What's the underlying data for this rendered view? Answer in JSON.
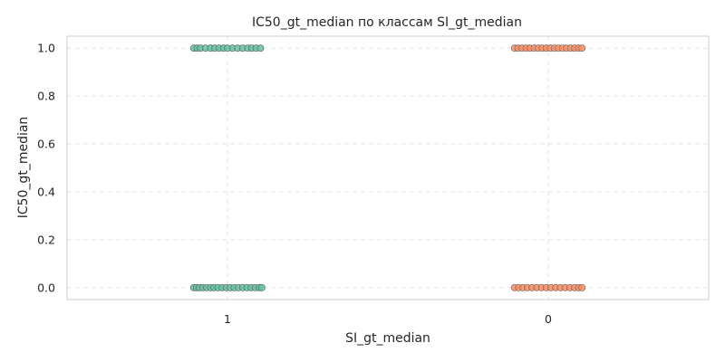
{
  "chart_data": {
    "type": "scatter",
    "title": "IC50_gt_median по классам SI_gt_median",
    "xlabel": "SI_gt_median",
    "ylabel": "IC50_gt_median",
    "categories": [
      "1",
      "0"
    ],
    "ylim": [
      -0.05,
      1.05
    ],
    "yticks": [
      "0.0",
      "0.2",
      "0.4",
      "0.6",
      "0.8",
      "1.0"
    ],
    "grid": true,
    "series": [
      {
        "category": "1",
        "color": "#66c2a5",
        "edge_color": "#5b6b66",
        "points": [
          {
            "jitter": -0.1,
            "y": 1
          },
          {
            "jitter": -0.09,
            "y": 1
          },
          {
            "jitter": -0.08,
            "y": 1
          },
          {
            "jitter": -0.065,
            "y": 1
          },
          {
            "jitter": -0.05,
            "y": 1
          },
          {
            "jitter": -0.038,
            "y": 1
          },
          {
            "jitter": -0.025,
            "y": 1
          },
          {
            "jitter": -0.012,
            "y": 1
          },
          {
            "jitter": 0.0,
            "y": 1
          },
          {
            "jitter": 0.015,
            "y": 1
          },
          {
            "jitter": 0.03,
            "y": 1
          },
          {
            "jitter": 0.045,
            "y": 1
          },
          {
            "jitter": 0.06,
            "y": 1
          },
          {
            "jitter": 0.072,
            "y": 1
          },
          {
            "jitter": 0.085,
            "y": 1
          },
          {
            "jitter": 0.098,
            "y": 1
          },
          {
            "jitter": -0.1,
            "y": 0
          },
          {
            "jitter": -0.092,
            "y": 0
          },
          {
            "jitter": -0.083,
            "y": 0
          },
          {
            "jitter": -0.073,
            "y": 0
          },
          {
            "jitter": -0.062,
            "y": 0
          },
          {
            "jitter": -0.05,
            "y": 0
          },
          {
            "jitter": -0.04,
            "y": 0
          },
          {
            "jitter": -0.028,
            "y": 0
          },
          {
            "jitter": -0.016,
            "y": 0
          },
          {
            "jitter": -0.004,
            "y": 0
          },
          {
            "jitter": 0.008,
            "y": 0
          },
          {
            "jitter": 0.02,
            "y": 0
          },
          {
            "jitter": 0.032,
            "y": 0
          },
          {
            "jitter": 0.045,
            "y": 0
          },
          {
            "jitter": 0.058,
            "y": 0
          },
          {
            "jitter": 0.07,
            "y": 0
          },
          {
            "jitter": 0.082,
            "y": 0
          },
          {
            "jitter": 0.094,
            "y": 0
          },
          {
            "jitter": 0.102,
            "y": 0
          }
        ]
      },
      {
        "category": "0",
        "color": "#fc8d62",
        "edge_color": "#7a6a63",
        "points": [
          {
            "jitter": -0.1,
            "y": 1
          },
          {
            "jitter": -0.09,
            "y": 1
          },
          {
            "jitter": -0.078,
            "y": 1
          },
          {
            "jitter": -0.066,
            "y": 1
          },
          {
            "jitter": -0.054,
            "y": 1
          },
          {
            "jitter": -0.042,
            "y": 1
          },
          {
            "jitter": -0.03,
            "y": 1
          },
          {
            "jitter": -0.018,
            "y": 1
          },
          {
            "jitter": -0.006,
            "y": 1
          },
          {
            "jitter": 0.006,
            "y": 1
          },
          {
            "jitter": 0.018,
            "y": 1
          },
          {
            "jitter": 0.03,
            "y": 1
          },
          {
            "jitter": 0.042,
            "y": 1
          },
          {
            "jitter": 0.054,
            "y": 1
          },
          {
            "jitter": 0.066,
            "y": 1
          },
          {
            "jitter": 0.078,
            "y": 1
          },
          {
            "jitter": 0.09,
            "y": 1
          },
          {
            "jitter": 0.1,
            "y": 1
          },
          {
            "jitter": -0.1,
            "y": 0
          },
          {
            "jitter": -0.088,
            "y": 0
          },
          {
            "jitter": -0.075,
            "y": 0
          },
          {
            "jitter": -0.062,
            "y": 0
          },
          {
            "jitter": -0.048,
            "y": 0
          },
          {
            "jitter": -0.034,
            "y": 0
          },
          {
            "jitter": -0.02,
            "y": 0
          },
          {
            "jitter": -0.006,
            "y": 0
          },
          {
            "jitter": 0.008,
            "y": 0
          },
          {
            "jitter": 0.022,
            "y": 0
          },
          {
            "jitter": 0.036,
            "y": 0
          },
          {
            "jitter": 0.05,
            "y": 0
          },
          {
            "jitter": 0.064,
            "y": 0
          },
          {
            "jitter": 0.078,
            "y": 0
          },
          {
            "jitter": 0.09,
            "y": 0
          },
          {
            "jitter": 0.1,
            "y": 0
          }
        ]
      }
    ]
  }
}
